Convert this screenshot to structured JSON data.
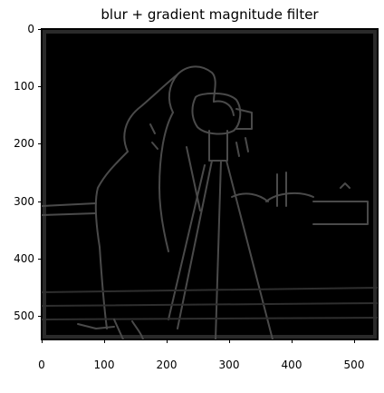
{
  "figure": {
    "title": "blur + gradient magnitude filter",
    "image": {
      "description_name": "cameraman-edge-map",
      "background_color": "#000000",
      "edge_color": "#4a4a4a"
    },
    "axis": {
      "y_ticks": [
        "0",
        "100",
        "200",
        "300",
        "400",
        "500"
      ],
      "x_ticks": [
        "0",
        "100",
        "200",
        "300",
        "400",
        "500"
      ],
      "y_tick_values": [
        0,
        100,
        200,
        300,
        400,
        500
      ],
      "x_tick_values": [
        0,
        100,
        200,
        300,
        400,
        500
      ],
      "extent": [
        0,
        540
      ]
    }
  }
}
